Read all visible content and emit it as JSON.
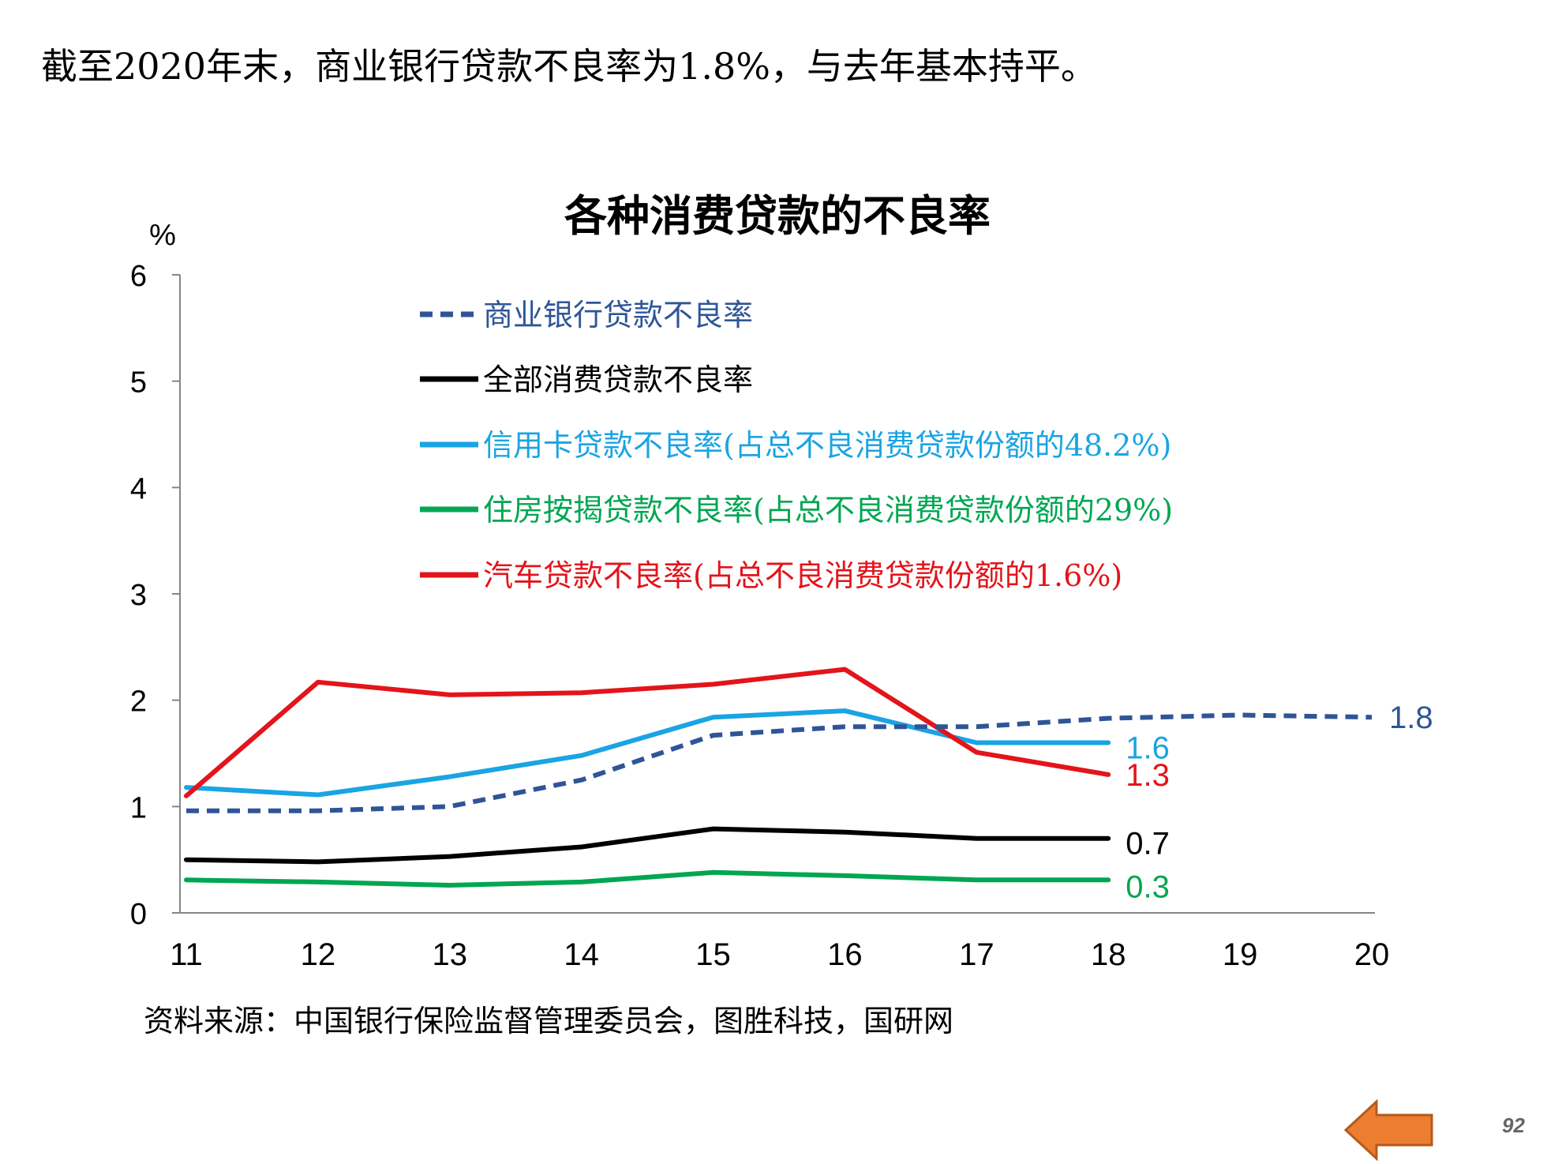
{
  "headline": "截至2020年末，商业银行贷款不良率为1.8%，与去年基本持平。",
  "source": "资料来源：中国银行保险监督管理委员会，图胜科技，国研网",
  "page_number": "92",
  "nav": {
    "back_icon": "left-arrow-icon",
    "arrow_color": "#ED7D31"
  },
  "chart_data": {
    "type": "line",
    "title": "各种消费贷款的不良率",
    "ylabel": "%",
    "xlabel": "",
    "ylim": [
      0,
      6
    ],
    "xlim": [
      11,
      20
    ],
    "x_ticks": [
      "11",
      "12",
      "13",
      "14",
      "15",
      "16",
      "17",
      "18",
      "19",
      "20"
    ],
    "y_ticks": [
      "0",
      "1",
      "2",
      "3",
      "4",
      "5",
      "6"
    ],
    "grid": false,
    "legend_position": "top-center",
    "series": [
      {
        "name": "商业银行贷款不良率",
        "color": "#2F5597",
        "style": "dashed",
        "x": [
          11,
          12,
          13,
          14,
          15,
          16,
          17,
          18,
          19,
          20
        ],
        "values": [
          0.96,
          0.96,
          1.0,
          1.25,
          1.67,
          1.75,
          1.75,
          1.83,
          1.86,
          1.84
        ],
        "end_label": "1.8"
      },
      {
        "name": "全部消费贷款不良率",
        "color": "#000000",
        "style": "solid",
        "x": [
          11,
          12,
          13,
          14,
          15,
          16,
          17,
          18
        ],
        "values": [
          0.5,
          0.48,
          0.53,
          0.62,
          0.79,
          0.76,
          0.7,
          0.7
        ],
        "end_label": "0.7"
      },
      {
        "name": "信用卡贷款不良率(占总不良消费贷款份额的48.2%)",
        "color": "#1AA4E3",
        "style": "solid",
        "x": [
          11,
          12,
          13,
          14,
          15,
          16,
          17,
          18
        ],
        "values": [
          1.18,
          1.11,
          1.28,
          1.48,
          1.84,
          1.9,
          1.6,
          1.6
        ],
        "end_label": "1.6"
      },
      {
        "name": "住房按揭贷款不良率(占总不良消费贷款份额的29%)",
        "color": "#00A651",
        "style": "solid",
        "x": [
          11,
          12,
          13,
          14,
          15,
          16,
          17,
          18
        ],
        "values": [
          0.31,
          0.29,
          0.26,
          0.29,
          0.38,
          0.35,
          0.31,
          0.31
        ],
        "end_label": "0.3"
      },
      {
        "name": "汽车贷款不良率(占总不良消费贷款份额的1.6%)",
        "color": "#E3141B",
        "style": "solid",
        "x": [
          11,
          12,
          13,
          14,
          15,
          16,
          17,
          18
        ],
        "values": [
          1.1,
          2.17,
          2.05,
          2.07,
          2.15,
          2.29,
          1.51,
          1.3
        ],
        "end_label": "1.3"
      }
    ]
  }
}
